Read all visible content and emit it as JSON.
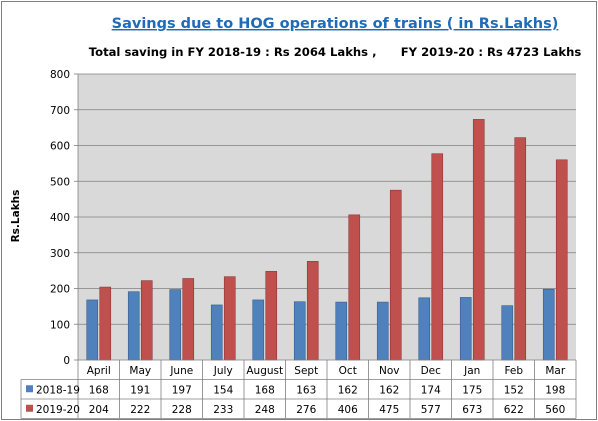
{
  "chart_data": {
    "type": "bar",
    "title": "Savings due to HOG operations of trains ( in Rs.Lakhs)",
    "subtitle": "Total saving in FY 2018-19 : Rs 2064 Lakhs ,      FY 2019-20 : Rs 4723 Lakhs",
    "ylabel": "Rs.Lakhs",
    "xlabel": "",
    "ylim": [
      0,
      800
    ],
    "yticks": [
      0,
      100,
      200,
      300,
      400,
      500,
      600,
      700,
      800
    ],
    "grid": true,
    "legend": "data-table-left",
    "categories": [
      "April",
      "May",
      "June",
      "July",
      "August",
      "Sept",
      "Oct",
      "Nov",
      "Dec",
      "Jan",
      "Feb",
      "Mar"
    ],
    "series": [
      {
        "name": "2018-19",
        "color": "#4f81bd",
        "values": [
          168,
          191,
          197,
          154,
          168,
          163,
          162,
          162,
          174,
          175,
          152,
          198
        ]
      },
      {
        "name": "2019-20",
        "color": "#c0504d",
        "values": [
          204,
          222,
          228,
          233,
          248,
          276,
          406,
          475,
          577,
          673,
          622,
          560
        ]
      }
    ],
    "colors": {
      "plot_background": "#d9d9d9",
      "gridline": "#7f7f7f",
      "title": "#1f6bb8"
    }
  }
}
